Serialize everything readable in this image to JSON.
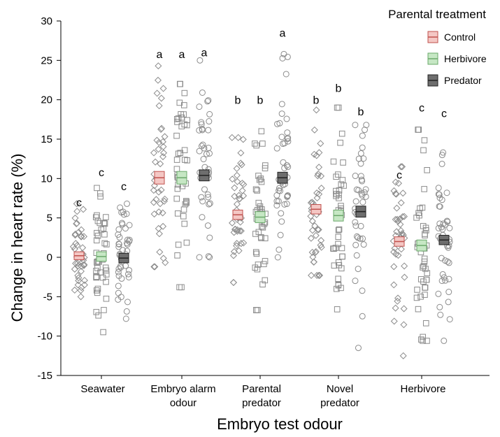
{
  "chart_data": {
    "type": "scatter",
    "title": "",
    "xlabel": "Embryo test odour",
    "ylabel": "Change in heart rate (%)",
    "ylim": [
      -15,
      30
    ],
    "yticks": [
      -15,
      -10,
      -5,
      0,
      5,
      10,
      15,
      20,
      25,
      30
    ],
    "grid": false,
    "legend": {
      "title": "Parental treatment",
      "placement": "top-right"
    },
    "categories": [
      {
        "lines": [
          "Seawater"
        ]
      },
      {
        "lines": [
          "Embryo alarm",
          "odour"
        ]
      },
      {
        "lines": [
          "Parental",
          "predator"
        ]
      },
      {
        "lines": [
          "Novel",
          "predator"
        ]
      },
      {
        "lines": [
          "Herbivore"
        ]
      }
    ],
    "series": [
      {
        "name": "Control",
        "marker": "diamond",
        "mean_color": "#f4c7c4",
        "mean_line": "#c0504d",
        "means": [
          0.2,
          10.1,
          5.4,
          6.1,
          2.0
        ],
        "sem": [
          0.5,
          0.8,
          0.6,
          0.6,
          0.6
        ],
        "letters": [
          "c",
          "a",
          "b",
          "b",
          "c"
        ],
        "letter_y": [
          6.5,
          25.3,
          19.5,
          19.5,
          10.0
        ],
        "range": [
          [
            -5,
            6.8
          ],
          [
            -1.2,
            24.3
          ],
          [
            -3.2,
            15.2
          ],
          [
            -2.3,
            18.7
          ],
          [
            -12.5,
            11.5
          ]
        ]
      },
      {
        "name": "Herbivore",
        "marker": "square",
        "mean_color": "#c6e7c4",
        "mean_line": "#6aa86a",
        "means": [
          0.1,
          10.1,
          5.1,
          5.3,
          1.5
        ],
        "sem": [
          0.6,
          0.8,
          0.7,
          0.7,
          0.7
        ],
        "letters": [
          "c",
          "a",
          "b",
          "b",
          "c"
        ],
        "letter_y": [
          10.3,
          25.3,
          19.5,
          21.0,
          18.5
        ],
        "range": [
          [
            -9.5,
            8.8
          ],
          [
            -3.8,
            22
          ],
          [
            -6.7,
            16
          ],
          [
            -6.6,
            19
          ],
          [
            -10.6,
            16.2
          ]
        ]
      },
      {
        "name": "Predator",
        "marker": "circle",
        "mean_color": "#6e6e6e",
        "mean_line": "#222222",
        "means": [
          -0.1,
          10.4,
          10.1,
          5.8,
          2.2
        ],
        "sem": [
          0.6,
          0.7,
          0.7,
          0.7,
          0.6
        ],
        "letters": [
          "c",
          "a",
          "a",
          "b",
          "c"
        ],
        "letter_y": [
          8.5,
          25.5,
          28.0,
          18.0,
          17.8
        ],
        "range": [
          [
            -7.8,
            6.8
          ],
          [
            0,
            25
          ],
          [
            0,
            25.8
          ],
          [
            -11.5,
            16.8
          ],
          [
            -10.6,
            13.3
          ]
        ]
      }
    ]
  }
}
